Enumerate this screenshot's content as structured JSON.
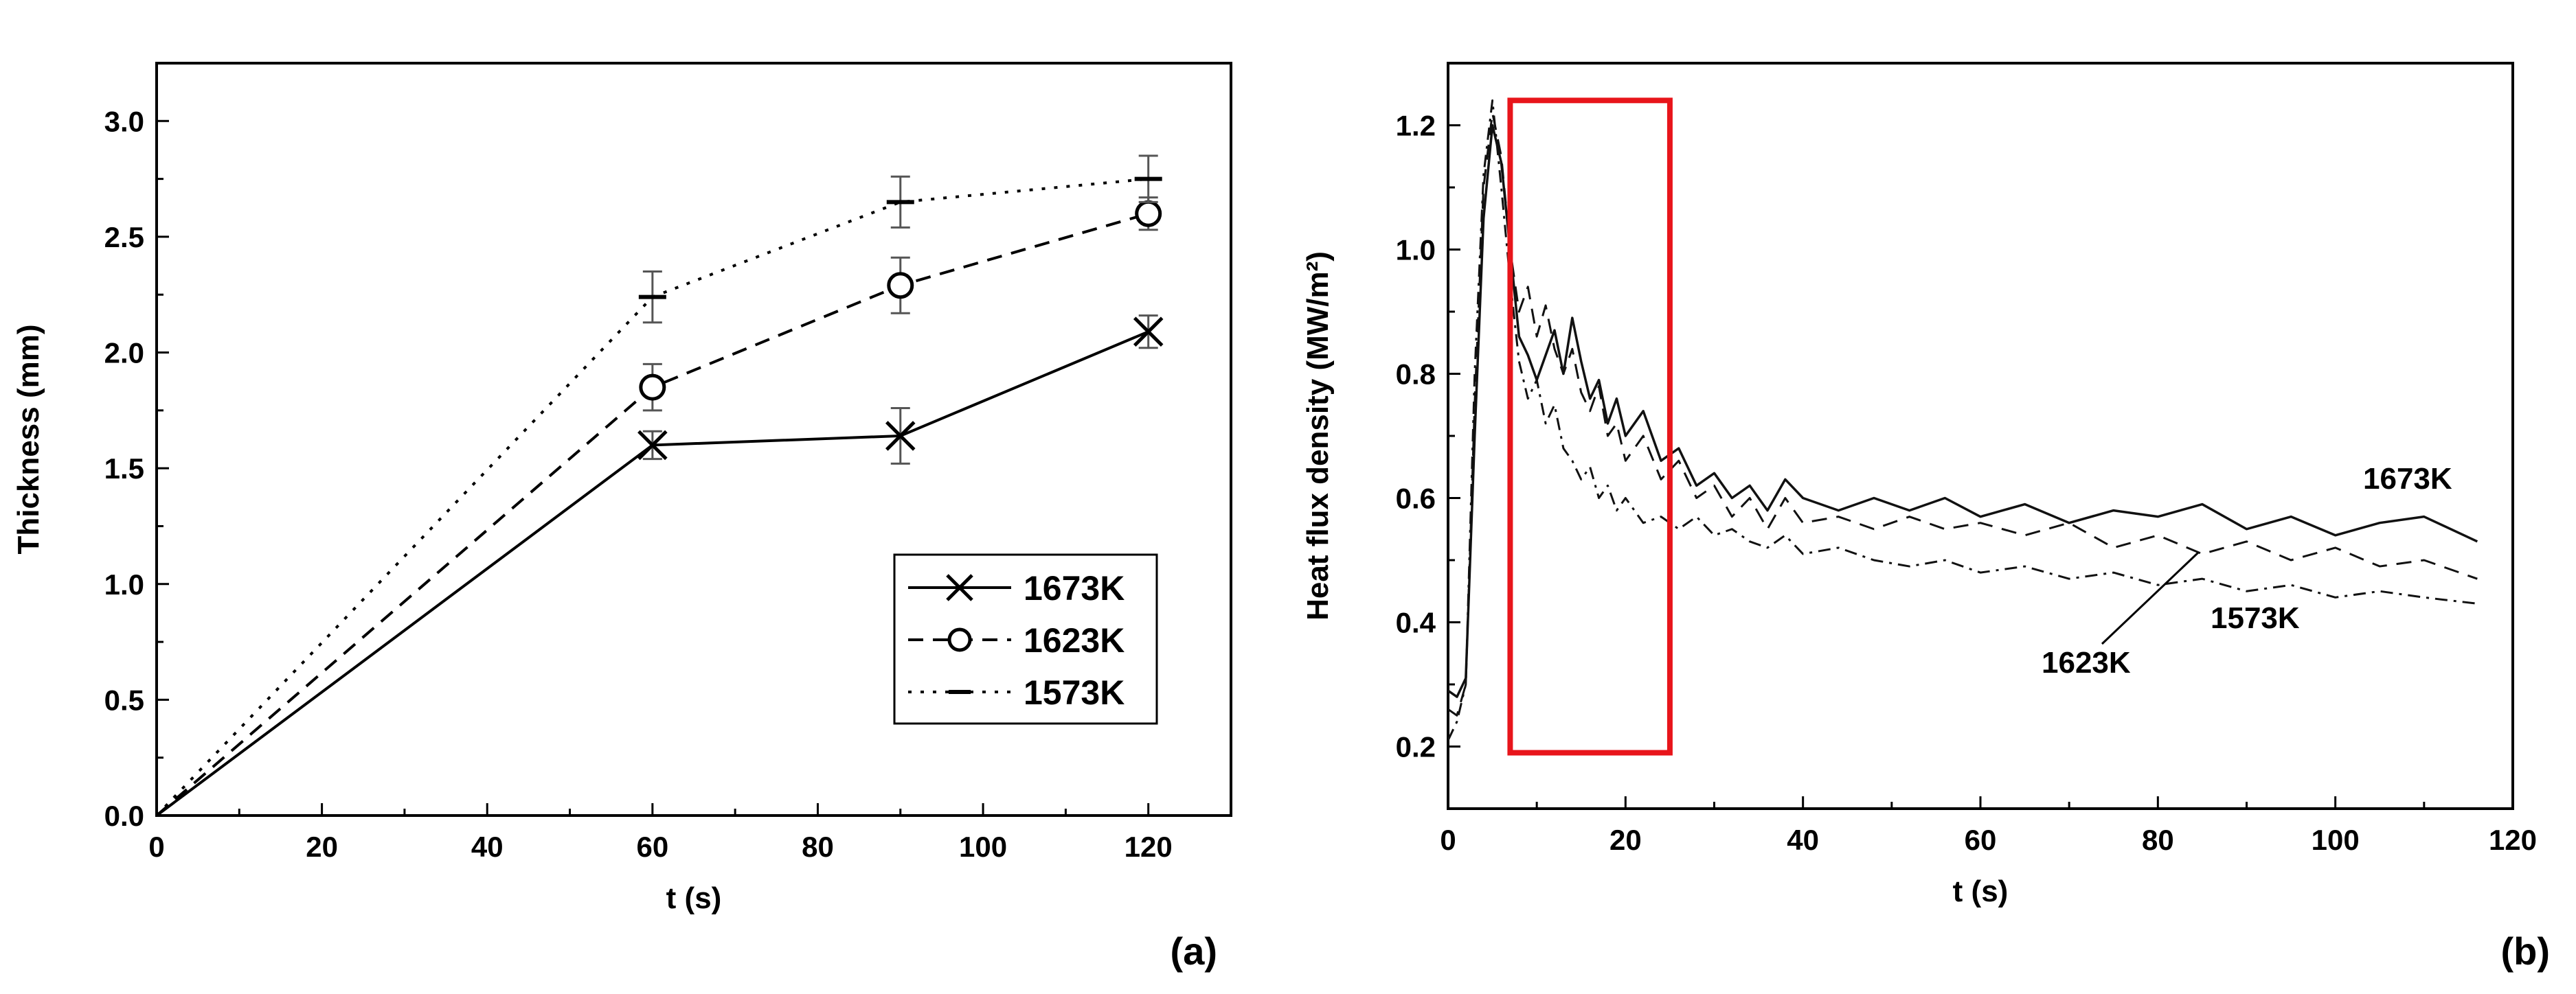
{
  "chart_data": [
    {
      "type": "line",
      "panel_label": "(a)",
      "xlabel": "t (s)",
      "ylabel": "Thickness (mm)",
      "xlim": [
        0,
        130
      ],
      "ylim": [
        0,
        3.25
      ],
      "xticks": [
        0,
        20,
        40,
        60,
        80,
        100,
        120
      ],
      "xtick_labels": [
        "0",
        "20",
        "40",
        "60",
        "80",
        "100",
        "120"
      ],
      "yticks": [
        0,
        0.5,
        1.0,
        1.5,
        2.0,
        2.5,
        3.0
      ],
      "ytick_labels": [
        "0.0",
        "0.5",
        "1.0",
        "1.5",
        "2.0",
        "2.5",
        "3.0"
      ],
      "legend_position": "lower-right",
      "series": [
        {
          "name": "1673K",
          "style": "solid",
          "marker": "x",
          "x": [
            0,
            60,
            90,
            120
          ],
          "y": [
            0,
            1.6,
            1.64,
            2.09
          ],
          "err": [
            0,
            0.06,
            0.12,
            0.07
          ]
        },
        {
          "name": "1623K",
          "style": "dashed",
          "marker": "circle",
          "x": [
            0,
            60,
            90,
            120
          ],
          "y": [
            0,
            1.85,
            2.29,
            2.6
          ],
          "err": [
            0,
            0.1,
            0.12,
            0.07
          ]
        },
        {
          "name": "1573K",
          "style": "dotted",
          "marker": "dash",
          "x": [
            0,
            60,
            90,
            120
          ],
          "y": [
            0,
            2.24,
            2.65,
            2.75
          ],
          "err": [
            0,
            0.11,
            0.11,
            0.1
          ]
        }
      ]
    },
    {
      "type": "line",
      "panel_label": "(b)",
      "xlabel": "t (s)",
      "ylabel": "Heat flux density (MW/m²)",
      "xlim": [
        0,
        120
      ],
      "ylim": [
        0.1,
        1.3
      ],
      "xticks": [
        0,
        20,
        40,
        60,
        80,
        100,
        120
      ],
      "xtick_labels": [
        "0",
        "20",
        "40",
        "60",
        "80",
        "100",
        "120"
      ],
      "yticks": [
        0.2,
        0.4,
        0.6,
        0.8,
        1.0,
        1.2
      ],
      "ytick_labels": [
        "0.2",
        "0.4",
        "0.6",
        "0.8",
        "1.0",
        "1.2"
      ],
      "highlight_box": {
        "x_range": [
          7,
          25
        ],
        "y_range": [
          0.19,
          1.24
        ],
        "color": "#e8151b"
      },
      "annotations": [
        "1673K",
        "1623K",
        "1573K"
      ],
      "series": [
        {
          "name": "1673K",
          "style": "solid",
          "x": [
            0,
            1,
            2,
            3,
            4,
            5,
            6,
            7,
            8,
            9,
            10,
            11,
            12,
            13,
            14,
            15,
            16,
            17,
            18,
            19,
            20,
            22,
            24,
            26,
            28,
            30,
            32,
            34,
            36,
            38,
            40,
            44,
            48,
            52,
            56,
            60,
            65,
            70,
            75,
            80,
            85,
            90,
            95,
            100,
            105,
            110,
            116
          ],
          "y": [
            0.29,
            0.28,
            0.31,
            0.7,
            1.05,
            1.2,
            1.14,
            1.0,
            0.86,
            0.83,
            0.79,
            0.83,
            0.87,
            0.8,
            0.89,
            0.82,
            0.76,
            0.79,
            0.72,
            0.76,
            0.7,
            0.74,
            0.66,
            0.68,
            0.62,
            0.64,
            0.6,
            0.62,
            0.58,
            0.63,
            0.6,
            0.58,
            0.6,
            0.58,
            0.6,
            0.57,
            0.59,
            0.56,
            0.58,
            0.57,
            0.59,
            0.55,
            0.57,
            0.54,
            0.56,
            0.57,
            0.53
          ]
        },
        {
          "name": "1623K",
          "style": "dashed",
          "x": [
            0,
            1,
            2,
            3,
            4,
            5,
            6,
            7,
            8,
            9,
            10,
            11,
            12,
            13,
            14,
            15,
            16,
            17,
            18,
            19,
            20,
            22,
            24,
            26,
            28,
            30,
            32,
            34,
            36,
            38,
            40,
            44,
            48,
            52,
            56,
            60,
            65,
            70,
            75,
            80,
            85,
            90,
            95,
            100,
            105,
            110,
            116
          ],
          "y": [
            0.26,
            0.25,
            0.3,
            0.75,
            1.1,
            1.22,
            1.15,
            1.0,
            0.9,
            0.94,
            0.86,
            0.91,
            0.84,
            0.8,
            0.84,
            0.77,
            0.74,
            0.78,
            0.7,
            0.72,
            0.66,
            0.7,
            0.63,
            0.66,
            0.6,
            0.62,
            0.57,
            0.6,
            0.55,
            0.6,
            0.56,
            0.57,
            0.55,
            0.57,
            0.55,
            0.56,
            0.54,
            0.56,
            0.52,
            0.54,
            0.51,
            0.53,
            0.5,
            0.52,
            0.49,
            0.5,
            0.47
          ]
        },
        {
          "name": "1573K",
          "style": "dashdot",
          "x": [
            0,
            1,
            2,
            3,
            4,
            5,
            6,
            7,
            8,
            9,
            10,
            11,
            12,
            13,
            14,
            15,
            16,
            17,
            18,
            19,
            20,
            22,
            24,
            26,
            28,
            30,
            32,
            34,
            36,
            38,
            40,
            44,
            48,
            52,
            56,
            60,
            65,
            70,
            75,
            80,
            85,
            90,
            95,
            100,
            105,
            110,
            116
          ],
          "y": [
            0.21,
            0.24,
            0.3,
            0.8,
            1.12,
            1.24,
            1.1,
            0.95,
            0.82,
            0.76,
            0.79,
            0.72,
            0.75,
            0.68,
            0.66,
            0.63,
            0.65,
            0.6,
            0.62,
            0.58,
            0.6,
            0.56,
            0.57,
            0.55,
            0.57,
            0.54,
            0.55,
            0.53,
            0.52,
            0.54,
            0.51,
            0.52,
            0.5,
            0.49,
            0.5,
            0.48,
            0.49,
            0.47,
            0.48,
            0.46,
            0.47,
            0.45,
            0.46,
            0.44,
            0.45,
            0.44,
            0.43
          ]
        }
      ]
    }
  ]
}
